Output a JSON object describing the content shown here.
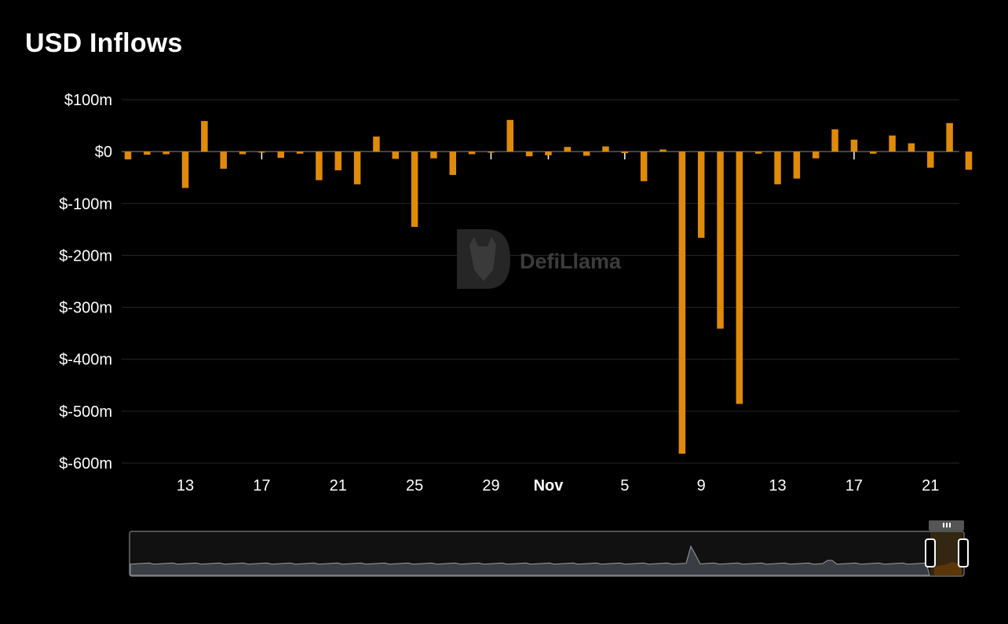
{
  "title": "USD Inflows",
  "watermark": "DefiLlama",
  "colors": {
    "bar": "#e08a0a",
    "grid": "#262626",
    "zero_line": "#5a5a5a",
    "background": "#000000"
  },
  "chart_data": {
    "type": "bar",
    "title": "USD Inflows",
    "xlabel": "",
    "ylabel": "",
    "ylim": [
      -600,
      100
    ],
    "y_unit": "$m",
    "y_ticks": [
      {
        "value": 100,
        "label": "$100m"
      },
      {
        "value": 0,
        "label": "$0"
      },
      {
        "value": -100,
        "label": "$-100m"
      },
      {
        "value": -200,
        "label": "$-200m"
      },
      {
        "value": -300,
        "label": "$-300m"
      },
      {
        "value": -400,
        "label": "$-400m"
      },
      {
        "value": -500,
        "label": "$-500m"
      },
      {
        "value": -600,
        "label": "$-600m"
      }
    ],
    "x_ticks": [
      {
        "date": "2024-10-13",
        "label": "13",
        "bold": false
      },
      {
        "date": "2024-10-17",
        "label": "17",
        "bold": false
      },
      {
        "date": "2024-10-21",
        "label": "21",
        "bold": false
      },
      {
        "date": "2024-10-25",
        "label": "25",
        "bold": false
      },
      {
        "date": "2024-10-29",
        "label": "29",
        "bold": false
      },
      {
        "date": "2024-11-01",
        "label": "Nov",
        "bold": true
      },
      {
        "date": "2024-11-05",
        "label": "5",
        "bold": false
      },
      {
        "date": "2024-11-09",
        "label": "9",
        "bold": false
      },
      {
        "date": "2024-11-13",
        "label": "13",
        "bold": false
      },
      {
        "date": "2024-11-17",
        "label": "17",
        "bold": false
      },
      {
        "date": "2024-11-21",
        "label": "21",
        "bold": false
      }
    ],
    "grid": true,
    "legend": "none",
    "series": [
      {
        "values": [
          [
            "2024-10-10",
            -15
          ],
          [
            "2024-10-11",
            -6
          ],
          [
            "2024-10-12",
            -5
          ],
          [
            "2024-10-13",
            -70
          ],
          [
            "2024-10-14",
            59
          ],
          [
            "2024-10-15",
            -33
          ],
          [
            "2024-10-16",
            -5
          ],
          [
            "2024-10-17",
            -2
          ],
          [
            "2024-10-18",
            -12
          ],
          [
            "2024-10-19",
            -4
          ],
          [
            "2024-10-20",
            -55
          ],
          [
            "2024-10-21",
            -36
          ],
          [
            "2024-10-22",
            -63
          ],
          [
            "2024-10-23",
            29
          ],
          [
            "2024-10-24",
            -14
          ],
          [
            "2024-10-25",
            -145
          ],
          [
            "2024-10-26",
            -13
          ],
          [
            "2024-10-27",
            -45
          ],
          [
            "2024-10-28",
            -5
          ],
          [
            "2024-10-29",
            -2
          ],
          [
            "2024-10-30",
            61
          ],
          [
            "2024-10-31",
            -9
          ],
          [
            "2024-11-01",
            -7
          ],
          [
            "2024-11-02",
            9
          ],
          [
            "2024-11-03",
            -8
          ],
          [
            "2024-11-04",
            10
          ],
          [
            "2024-11-05",
            -3
          ],
          [
            "2024-11-06",
            -57
          ],
          [
            "2024-11-07",
            4
          ],
          [
            "2024-11-08",
            -582
          ],
          [
            "2024-11-09",
            -166
          ],
          [
            "2024-11-10",
            -341
          ],
          [
            "2024-11-11",
            -486
          ],
          [
            "2024-11-12",
            -4
          ],
          [
            "2024-11-13",
            -63
          ],
          [
            "2024-11-14",
            -52
          ],
          [
            "2024-11-15",
            -13
          ],
          [
            "2024-11-16",
            43
          ],
          [
            "2024-11-17",
            23
          ],
          [
            "2024-11-18",
            -4
          ],
          [
            "2024-11-19",
            31
          ],
          [
            "2024-11-20",
            16
          ],
          [
            "2024-11-21",
            -31
          ],
          [
            "2024-11-22",
            55
          ],
          [
            "2024-11-23",
            -35
          ]
        ]
      }
    ]
  }
}
